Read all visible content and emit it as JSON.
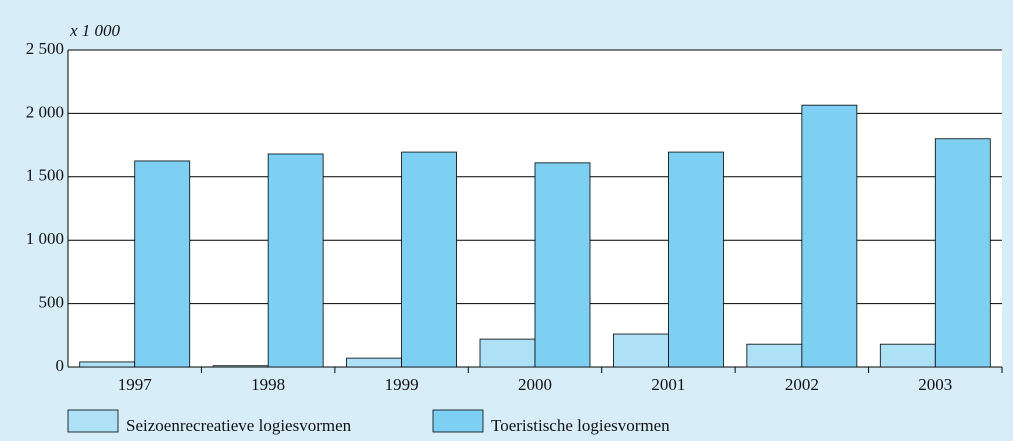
{
  "chart_data": {
    "type": "bar",
    "y_axis_label": "x 1 000",
    "categories": [
      "1997",
      "1998",
      "1999",
      "2000",
      "2001",
      "2002",
      "2003"
    ],
    "series": [
      {
        "name": "Seizoenrecreatieve logiesvormen",
        "color": "#aee0f6",
        "values": [
          40,
          10,
          70,
          220,
          260,
          180,
          180
        ]
      },
      {
        "name": "Toeristische logiesvormen",
        "color": "#7ed0f3",
        "values": [
          1625,
          1680,
          1695,
          1610,
          1695,
          2065,
          1800
        ]
      }
    ],
    "ylim": [
      0,
      2500
    ],
    "yticks": [
      0,
      500,
      {
        "value": 1000,
        "label": "1 000"
      },
      {
        "value": 1500,
        "label": "1 500"
      },
      {
        "value": 2000,
        "label": "2 000"
      },
      {
        "value": 2500,
        "label": "2 500"
      }
    ],
    "grid": true,
    "legend": "bottom"
  }
}
